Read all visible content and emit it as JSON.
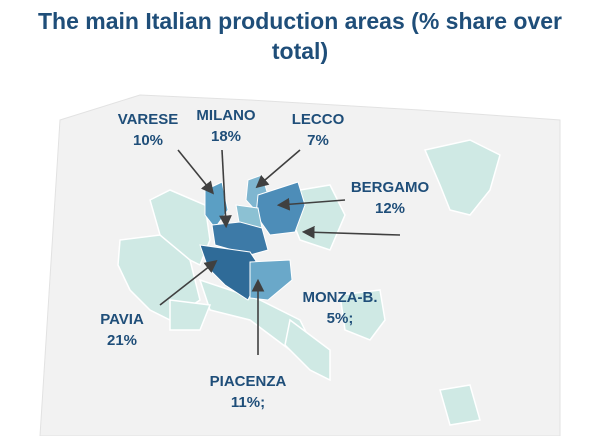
{
  "title": "The main Italian production areas (% share over total)",
  "regions": [
    {
      "name": "VARESE",
      "share": "10%"
    },
    {
      "name": "MILANO",
      "share": "18%"
    },
    {
      "name": "LECCO",
      "share": "7%"
    },
    {
      "name": "BERGAMO",
      "share": "12%"
    },
    {
      "name": "MONZA-B.",
      "share": "5%;"
    },
    {
      "name": "PAVIA",
      "share": "21%"
    },
    {
      "name": "PIACENZA",
      "share": "11%;"
    }
  ]
}
